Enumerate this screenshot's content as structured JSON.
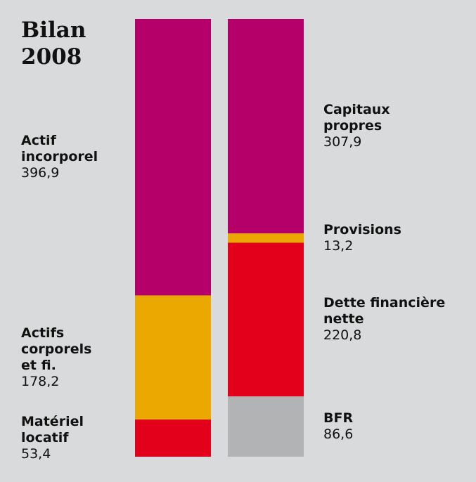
{
  "chart_data": {
    "type": "stacked_columns",
    "title": "Bilan 2008",
    "columns": [
      {
        "names": [
          "Actif incorporel",
          "Actifs corporels et fi.",
          "Matériel locatif"
        ],
        "values": [
          396.9,
          178.2,
          53.4
        ],
        "value_labels": [
          "396,9",
          "178,2",
          "53,4"
        ],
        "colors": [
          "#b5006a",
          "#eba800",
          "#e2001a"
        ]
      },
      {
        "names": [
          "Capitaux propres",
          "Provisions",
          "Dette financière nette",
          "BFR"
        ],
        "values": [
          307.9,
          13.2,
          220.8,
          86.6
        ],
        "value_labels": [
          "307,9",
          "13,2",
          "220,8",
          "86,6"
        ],
        "colors": [
          "#b5006a",
          "#eba800",
          "#e2001a",
          "#b2b3b5"
        ]
      }
    ]
  }
}
